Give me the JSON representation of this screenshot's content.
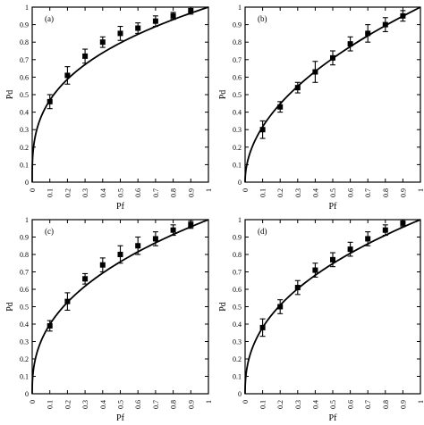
{
  "chart_data": [
    {
      "type": "line",
      "panel_label": "(a)",
      "xlabel": "Pf",
      "ylabel": "Pd",
      "xlim": [
        0,
        1
      ],
      "ylim": [
        0,
        1
      ],
      "x_ticks": [
        "0",
        "0.1",
        "0.2",
        "0.3",
        "0.4",
        "0.5",
        "0.6",
        "0.7",
        "0.8",
        "0.9",
        "1"
      ],
      "y_ticks": [
        "0",
        "0.1",
        "0.2",
        "0.3",
        "0.4",
        "0.5",
        "0.6",
        "0.7",
        "0.8",
        "0.9",
        "1"
      ],
      "curve_exponent": 0.33,
      "points": [
        {
          "x": 0.1,
          "y": 0.46,
          "err": 0.04
        },
        {
          "x": 0.2,
          "y": 0.61,
          "err": 0.05
        },
        {
          "x": 0.3,
          "y": 0.72,
          "err": 0.04
        },
        {
          "x": 0.4,
          "y": 0.8,
          "err": 0.03
        },
        {
          "x": 0.5,
          "y": 0.85,
          "err": 0.04
        },
        {
          "x": 0.6,
          "y": 0.88,
          "err": 0.03
        },
        {
          "x": 0.7,
          "y": 0.92,
          "err": 0.03
        },
        {
          "x": 0.8,
          "y": 0.95,
          "err": 0.02
        },
        {
          "x": 0.9,
          "y": 0.98,
          "err": 0.02
        }
      ]
    },
    {
      "type": "line",
      "panel_label": "(b)",
      "xlabel": "Pf",
      "ylabel": "Pd",
      "xlim": [
        0,
        1
      ],
      "ylim": [
        0,
        1
      ],
      "x_ticks": [
        "0",
        "0.1",
        "0.2",
        "0.3",
        "0.4",
        "0.5",
        "0.6",
        "0.7",
        "0.8",
        "0.9",
        "1"
      ],
      "y_ticks": [
        "0",
        "0.1",
        "0.2",
        "0.3",
        "0.4",
        "0.5",
        "0.6",
        "0.7",
        "0.8",
        "0.9",
        "1"
      ],
      "curve_exponent": 0.5,
      "points": [
        {
          "x": 0.1,
          "y": 0.3,
          "err": 0.05
        },
        {
          "x": 0.2,
          "y": 0.43,
          "err": 0.03
        },
        {
          "x": 0.3,
          "y": 0.54,
          "err": 0.03
        },
        {
          "x": 0.4,
          "y": 0.63,
          "err": 0.06
        },
        {
          "x": 0.5,
          "y": 0.71,
          "err": 0.04
        },
        {
          "x": 0.6,
          "y": 0.79,
          "err": 0.04
        },
        {
          "x": 0.7,
          "y": 0.85,
          "err": 0.05
        },
        {
          "x": 0.8,
          "y": 0.9,
          "err": 0.04
        },
        {
          "x": 0.9,
          "y": 0.95,
          "err": 0.03
        }
      ]
    },
    {
      "type": "line",
      "panel_label": "(c)",
      "xlabel": "Pf",
      "ylabel": "Pd",
      "xlim": [
        0,
        1
      ],
      "ylim": [
        0,
        1
      ],
      "x_ticks": [
        "0",
        "0.1",
        "0.2",
        "0.3",
        "0.4",
        "0.5",
        "0.6",
        "0.7",
        "0.8",
        "0.9",
        "1"
      ],
      "y_ticks": [
        "0",
        "0.1",
        "0.2",
        "0.3",
        "0.4",
        "0.5",
        "0.6",
        "0.7",
        "0.8",
        "0.9",
        "1"
      ],
      "curve_exponent": 0.4,
      "points": [
        {
          "x": 0.1,
          "y": 0.39,
          "err": 0.03
        },
        {
          "x": 0.2,
          "y": 0.53,
          "err": 0.05
        },
        {
          "x": 0.3,
          "y": 0.66,
          "err": 0.03
        },
        {
          "x": 0.4,
          "y": 0.74,
          "err": 0.04
        },
        {
          "x": 0.5,
          "y": 0.8,
          "err": 0.05
        },
        {
          "x": 0.6,
          "y": 0.85,
          "err": 0.05
        },
        {
          "x": 0.7,
          "y": 0.89,
          "err": 0.04
        },
        {
          "x": 0.8,
          "y": 0.94,
          "err": 0.03
        },
        {
          "x": 0.9,
          "y": 0.97,
          "err": 0.02
        }
      ]
    },
    {
      "type": "line",
      "panel_label": "(d)",
      "xlabel": "Pf",
      "ylabel": "Pd",
      "xlim": [
        0,
        1
      ],
      "ylim": [
        0,
        1
      ],
      "x_ticks": [
        "0",
        "0.1",
        "0.2",
        "0.3",
        "0.4",
        "0.5",
        "0.6",
        "0.7",
        "0.8",
        "0.9",
        "1"
      ],
      "y_ticks": [
        "0",
        "0.1",
        "0.2",
        "0.3",
        "0.4",
        "0.5",
        "0.6",
        "0.7",
        "0.8",
        "0.9",
        "1"
      ],
      "curve_exponent": 0.42,
      "points": [
        {
          "x": 0.1,
          "y": 0.38,
          "err": 0.05
        },
        {
          "x": 0.2,
          "y": 0.5,
          "err": 0.04
        },
        {
          "x": 0.3,
          "y": 0.61,
          "err": 0.04
        },
        {
          "x": 0.4,
          "y": 0.71,
          "err": 0.04
        },
        {
          "x": 0.5,
          "y": 0.77,
          "err": 0.04
        },
        {
          "x": 0.6,
          "y": 0.83,
          "err": 0.04
        },
        {
          "x": 0.7,
          "y": 0.89,
          "err": 0.04
        },
        {
          "x": 0.8,
          "y": 0.94,
          "err": 0.03
        },
        {
          "x": 0.9,
          "y": 0.98,
          "err": 0.02
        }
      ]
    }
  ]
}
